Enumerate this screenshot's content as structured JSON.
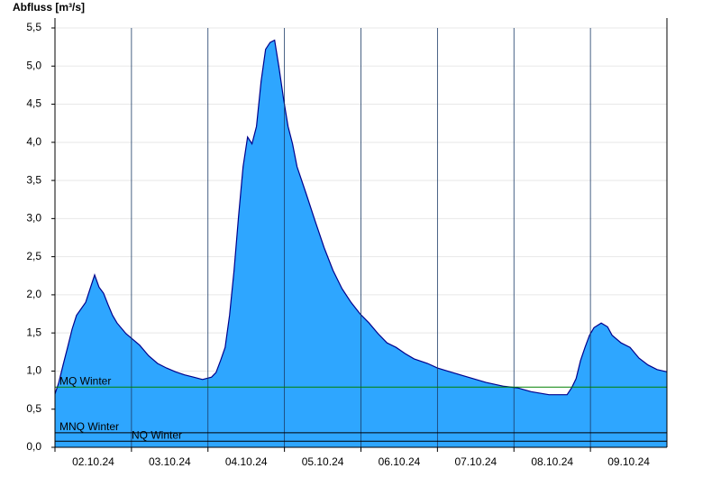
{
  "chart_data": {
    "type": "area",
    "y_label": "Abfluss [m³/s]",
    "days": [
      "02.10.24",
      "03.10.24",
      "04.10.24",
      "05.10.24",
      "06.10.24",
      "07.10.24",
      "08.10.24",
      "09.10.24"
    ],
    "xlim": [
      0,
      8
    ],
    "ylim": [
      0,
      5.5
    ],
    "yticks": [
      {
        "value": 0,
        "label": "0,0"
      },
      {
        "value": 0.5,
        "label": "0,5"
      },
      {
        "value": 1,
        "label": "1,0"
      },
      {
        "value": 1.5,
        "label": "1,5"
      },
      {
        "value": 2,
        "label": "2,0"
      },
      {
        "value": 2.5,
        "label": "2,5"
      },
      {
        "value": 3,
        "label": "3,0"
      },
      {
        "value": 3.5,
        "label": "3,5"
      },
      {
        "value": 4,
        "label": "4,0"
      },
      {
        "value": 4.5,
        "label": "4,5"
      },
      {
        "value": 5,
        "label": "5,0"
      },
      {
        "value": 5.5,
        "label": "5,5"
      }
    ],
    "grid": true,
    "series": [
      {
        "color": "#2ea6ff",
        "line_color": "#00008b",
        "x": [
          0,
          0.047,
          0.106,
          0.165,
          0.224,
          0.282,
          0.4,
          0.459,
          0.518,
          0.576,
          0.635,
          0.694,
          0.753,
          0.812,
          0.929,
          1,
          1.106,
          1.224,
          1.341,
          1.459,
          1.576,
          1.694,
          1.812,
          1.929,
          2.047,
          2.106,
          2.165,
          2.224,
          2.282,
          2.341,
          2.4,
          2.459,
          2.518,
          2.576,
          2.635,
          2.694,
          2.753,
          2.812,
          2.871,
          2.929,
          2.988,
          3.047,
          3.106,
          3.165,
          3.282,
          3.4,
          3.518,
          3.635,
          3.753,
          3.871,
          3.988,
          4.106,
          4.224,
          4.341,
          4.459,
          4.576,
          4.694,
          4.871,
          5,
          5.165,
          5.4,
          5.635,
          5.871,
          6.047,
          6.224,
          6.459,
          6.694,
          6.753,
          6.812,
          6.871,
          6.929,
          6.988,
          7.047,
          7.141,
          7.224,
          7.282,
          7.4,
          7.518,
          7.635,
          7.753,
          7.871,
          8
        ],
        "values": [
          0.7,
          0.84,
          1.08,
          1.31,
          1.55,
          1.73,
          1.9,
          2.08,
          2.26,
          2.1,
          2.02,
          1.87,
          1.73,
          1.63,
          1.49,
          1.43,
          1.34,
          1.2,
          1.1,
          1.04,
          0.99,
          0.95,
          0.92,
          0.89,
          0.92,
          0.98,
          1.14,
          1.31,
          1.73,
          2.32,
          3.03,
          3.68,
          4.07,
          3.98,
          4.21,
          4.8,
          5.22,
          5.31,
          5.34,
          4.98,
          4.57,
          4.21,
          3.98,
          3.68,
          3.33,
          2.97,
          2.62,
          2.32,
          2.08,
          1.9,
          1.75,
          1.63,
          1.49,
          1.37,
          1.31,
          1.23,
          1.16,
          1.1,
          1.04,
          0.99,
          0.92,
          0.85,
          0.8,
          0.78,
          0.73,
          0.69,
          0.69,
          0.78,
          0.9,
          1.14,
          1.31,
          1.47,
          1.57,
          1.63,
          1.58,
          1.47,
          1.37,
          1.31,
          1.17,
          1.08,
          1.02,
          0.99
        ]
      }
    ],
    "reference_lines": [
      {
        "label": "MQ Winter",
        "value": 0.79,
        "color": "#008000"
      },
      {
        "label": "MNQ Winter",
        "value": 0.19,
        "color": "#000000"
      },
      {
        "label": "NQ Winter",
        "value": 0.08,
        "color": "#000000"
      }
    ]
  }
}
